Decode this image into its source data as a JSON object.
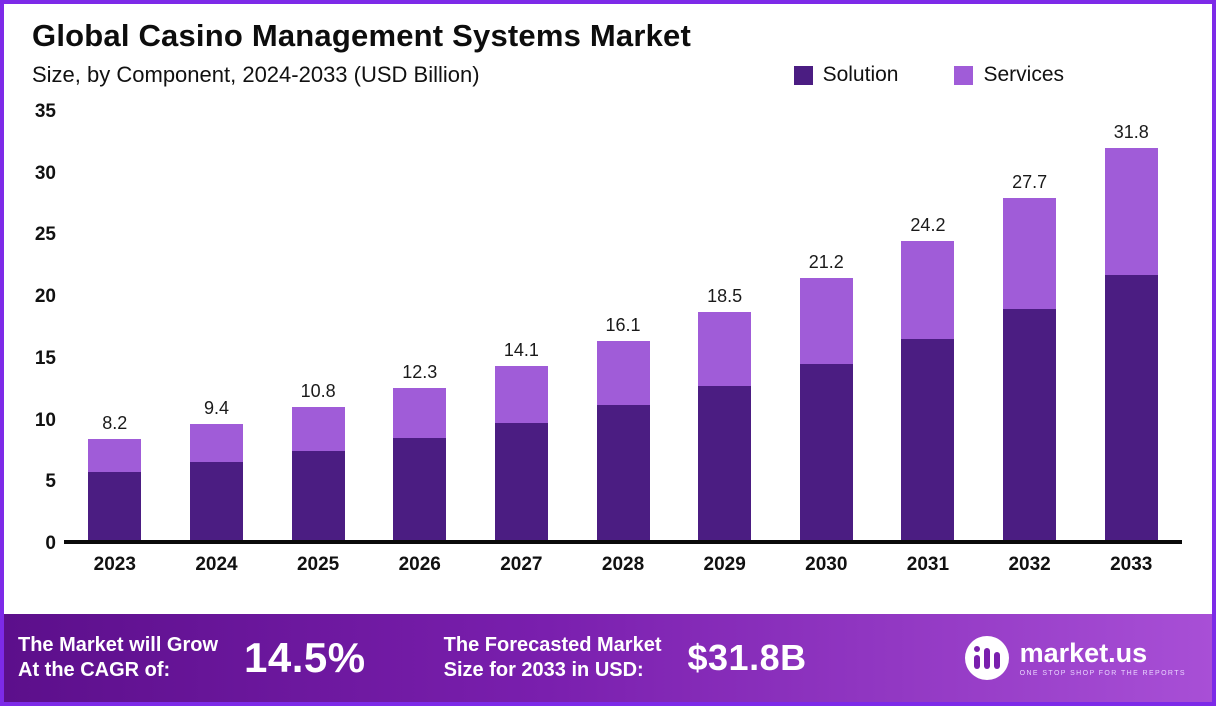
{
  "header": {
    "title": "Global Casino Management Systems Market",
    "subtitle": "Size, by Component, 2024-2033 (USD Billion)"
  },
  "colors": {
    "solution": "#4b1d82",
    "services": "#a05cd8",
    "footer_gradient_start": "#5c0f8b",
    "footer_gradient_end": "#a84fd6",
    "frame_border": "#7d2ae8"
  },
  "chart_data": {
    "type": "bar",
    "stacked": true,
    "categories": [
      "2023",
      "2024",
      "2025",
      "2026",
      "2027",
      "2028",
      "2029",
      "2030",
      "2031",
      "2032",
      "2033"
    ],
    "series": [
      {
        "name": "Solution",
        "values": [
          5.5,
          6.3,
          7.2,
          8.3,
          9.5,
          10.9,
          12.5,
          14.3,
          16.3,
          18.7,
          21.5
        ]
      },
      {
        "name": "Services",
        "values": [
          2.7,
          3.1,
          3.6,
          4.0,
          4.6,
          5.2,
          6.0,
          6.9,
          7.9,
          9.0,
          10.3
        ]
      }
    ],
    "totals": [
      8.2,
      9.4,
      10.8,
      12.3,
      14.1,
      16.1,
      18.5,
      21.2,
      24.2,
      27.7,
      31.8
    ],
    "total_labels": [
      "8.2",
      "9.4",
      "10.8",
      "12.3",
      "14.1",
      "16.1",
      "18.5",
      "21.2",
      "24.2",
      "27.7",
      "31.8"
    ],
    "title": "Global Casino Management Systems Market",
    "subtitle": "Size, by Component, 2024-2033 (USD Billion)",
    "xlabel": "",
    "ylabel": "",
    "ylim": [
      0,
      35
    ],
    "yticks": [
      0,
      5,
      10,
      15,
      20,
      25,
      30,
      35
    ],
    "grid": false,
    "legend_position": "top-right",
    "legend": [
      "Solution",
      "Services"
    ]
  },
  "footer": {
    "cagr_label_line1": "The Market will Grow",
    "cagr_label_line2": "At the CAGR of:",
    "cagr_value": "14.5%",
    "forecast_label_line1": "The Forecasted Market",
    "forecast_label_line2": "Size for 2033 in USD:",
    "forecast_value": "$31.8B",
    "logo_name": "market.us",
    "logo_tagline": "ONE STOP SHOP FOR THE REPORTS"
  }
}
